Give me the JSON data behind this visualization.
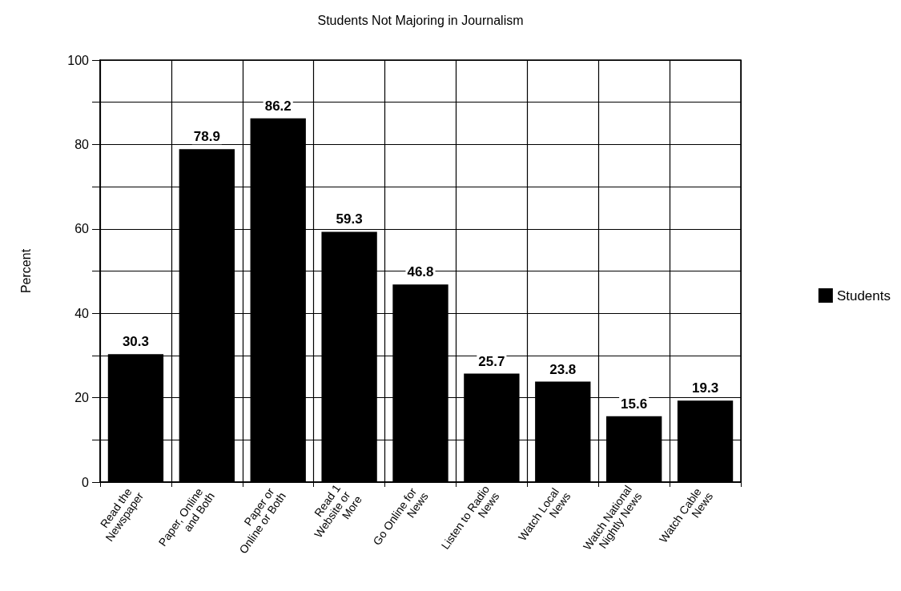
{
  "chart_data": {
    "type": "bar",
    "title": "Students Not Majoring in Journalism",
    "ylabel": "Percent",
    "categories": [
      "Read the Newspaper",
      "Paper, Online and Both",
      "Paper or Online or Both",
      "Read 1 Website or More",
      "Go Online for News",
      "Listen to Radio News",
      "Watch Local News",
      "Watch National Nightly News",
      "Watch Cable News"
    ],
    "series": [
      {
        "name": "Students",
        "color": "#000000",
        "values": [
          30.3,
          78.9,
          86.2,
          59.3,
          46.8,
          25.7,
          23.8,
          15.6,
          19.3
        ]
      }
    ],
    "data_labels": true,
    "ylim": [
      0,
      100
    ],
    "yticks": [
      0,
      {
        "value": 10,
        "label": null
      },
      20,
      {
        "value": 30,
        "label": null
      },
      40,
      {
        "value": 50,
        "label": null
      },
      60,
      {
        "value": 70,
        "label": null
      },
      80,
      {
        "value": 90,
        "label": null
      },
      100
    ],
    "grid": true,
    "legend": "right"
  }
}
